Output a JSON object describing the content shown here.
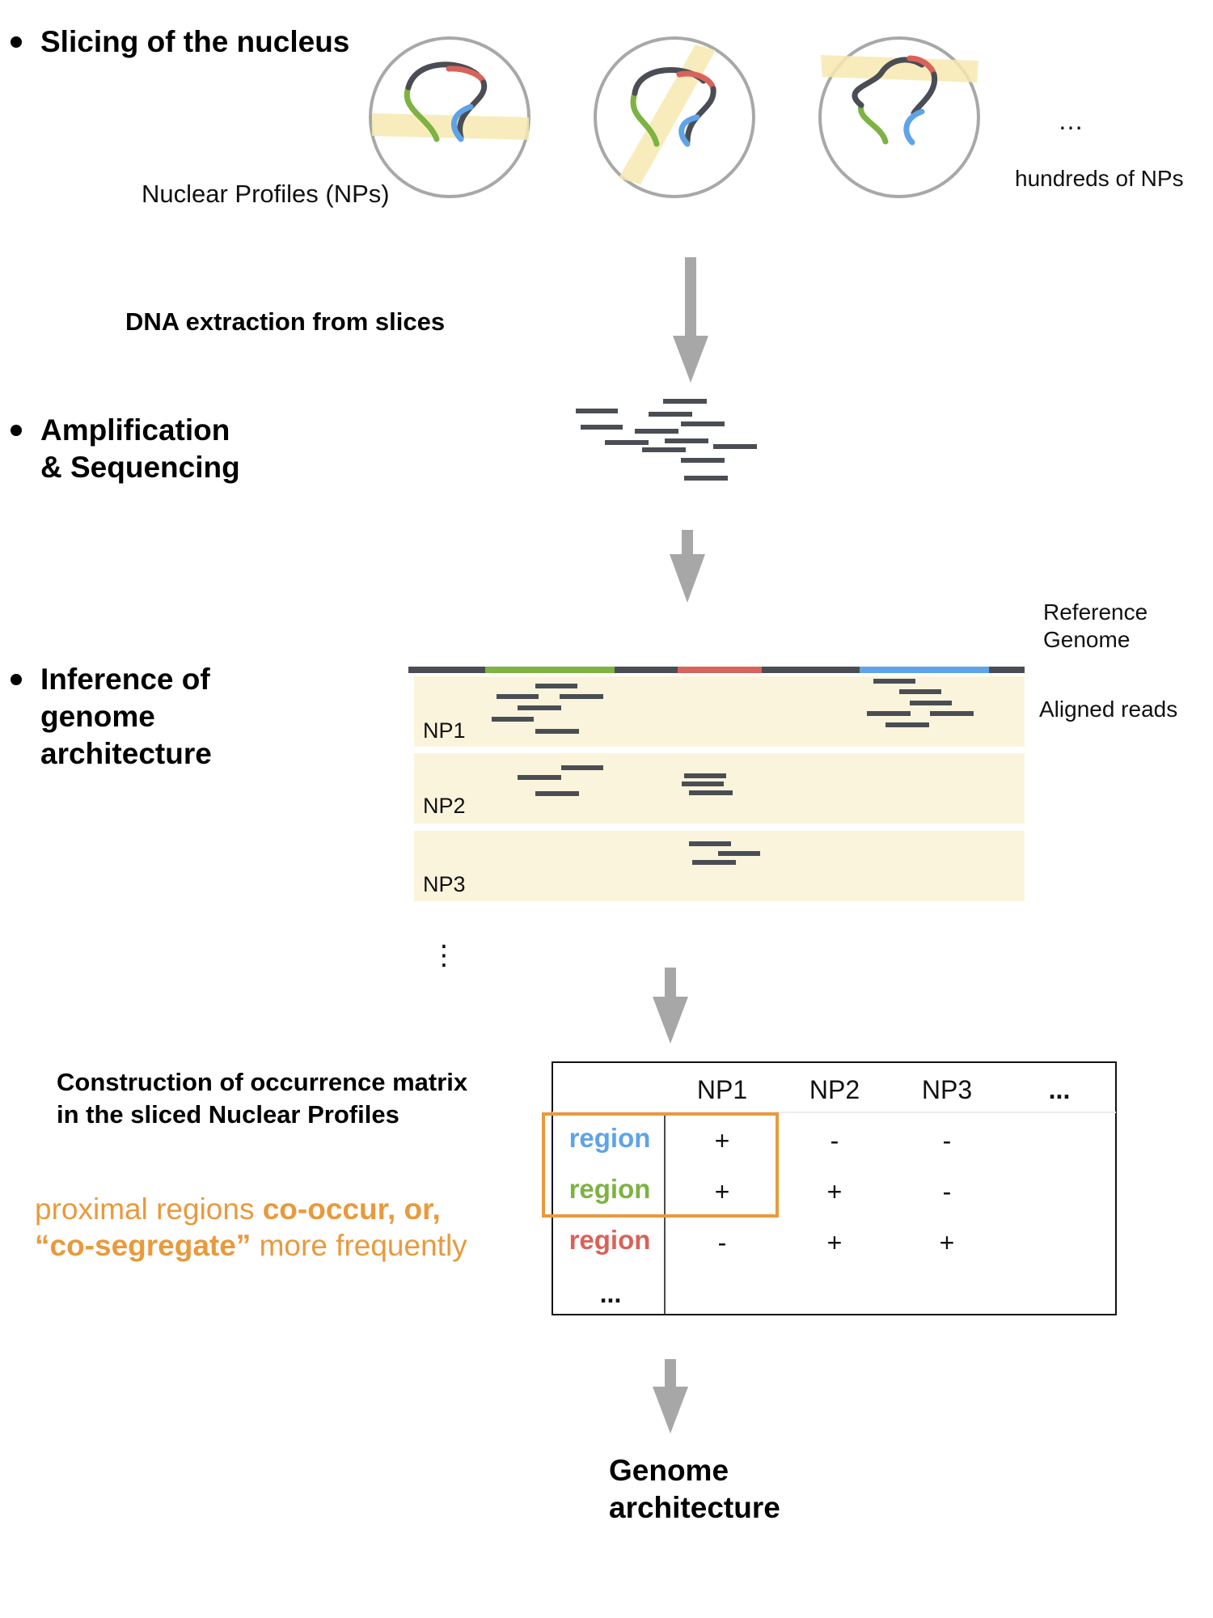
{
  "steps": {
    "slicing": "Slicing of the nucleus",
    "dna_extraction": "DNA extraction from slices",
    "amplification_line1": "Amplification",
    "amplification_line2": "& Sequencing",
    "inference_line1": "Inference of",
    "inference_line2": "genome",
    "inference_line3": "architecture",
    "construction_line1": "Construction of occurrence matrix",
    "construction_line2": "in the sliced Nuclear Profiles",
    "result_line1": "Genome",
    "result_line2": "architecture"
  },
  "labels": {
    "nuclear_profiles": "Nuclear Profiles (NPs)",
    "ellipsis_h": "…",
    "hundreds": "hundreds of NPs",
    "reference_line1": "Reference",
    "reference_line2": "Genome",
    "aligned_reads": "Aligned reads",
    "vertical_ellipsis": "⋮"
  },
  "alignment_rows": [
    {
      "label": "NP1"
    },
    {
      "label": "NP2"
    },
    {
      "label": "NP3"
    }
  ],
  "matrix": {
    "columns": [
      "NP1",
      "NP2",
      "NP3",
      "..."
    ],
    "rows": [
      {
        "label": "region",
        "color": "#5fa3e8",
        "cells": [
          "+",
          "-",
          "-"
        ]
      },
      {
        "label": "region",
        "color": "#7cb342",
        "cells": [
          "+",
          "+",
          "-"
        ]
      },
      {
        "label": "region",
        "color": "#d9625a",
        "cells": [
          "-",
          "+",
          "+"
        ]
      }
    ],
    "more_rows": "..."
  },
  "note": {
    "part1": "proximal regions ",
    "part2": "co-occur, or,",
    "part3": "“co-segregate”",
    "part4": " more frequently"
  },
  "colors": {
    "chromatin": "#4a4e54",
    "red_region": "#d9625a",
    "green_region": "#7cb342",
    "blue_region": "#5fa3e8",
    "slice": "#f7e9b0",
    "aligned_bg": "#fbf4dc",
    "arrow": "#a7a7a7",
    "highlight": "#e89a3c"
  }
}
